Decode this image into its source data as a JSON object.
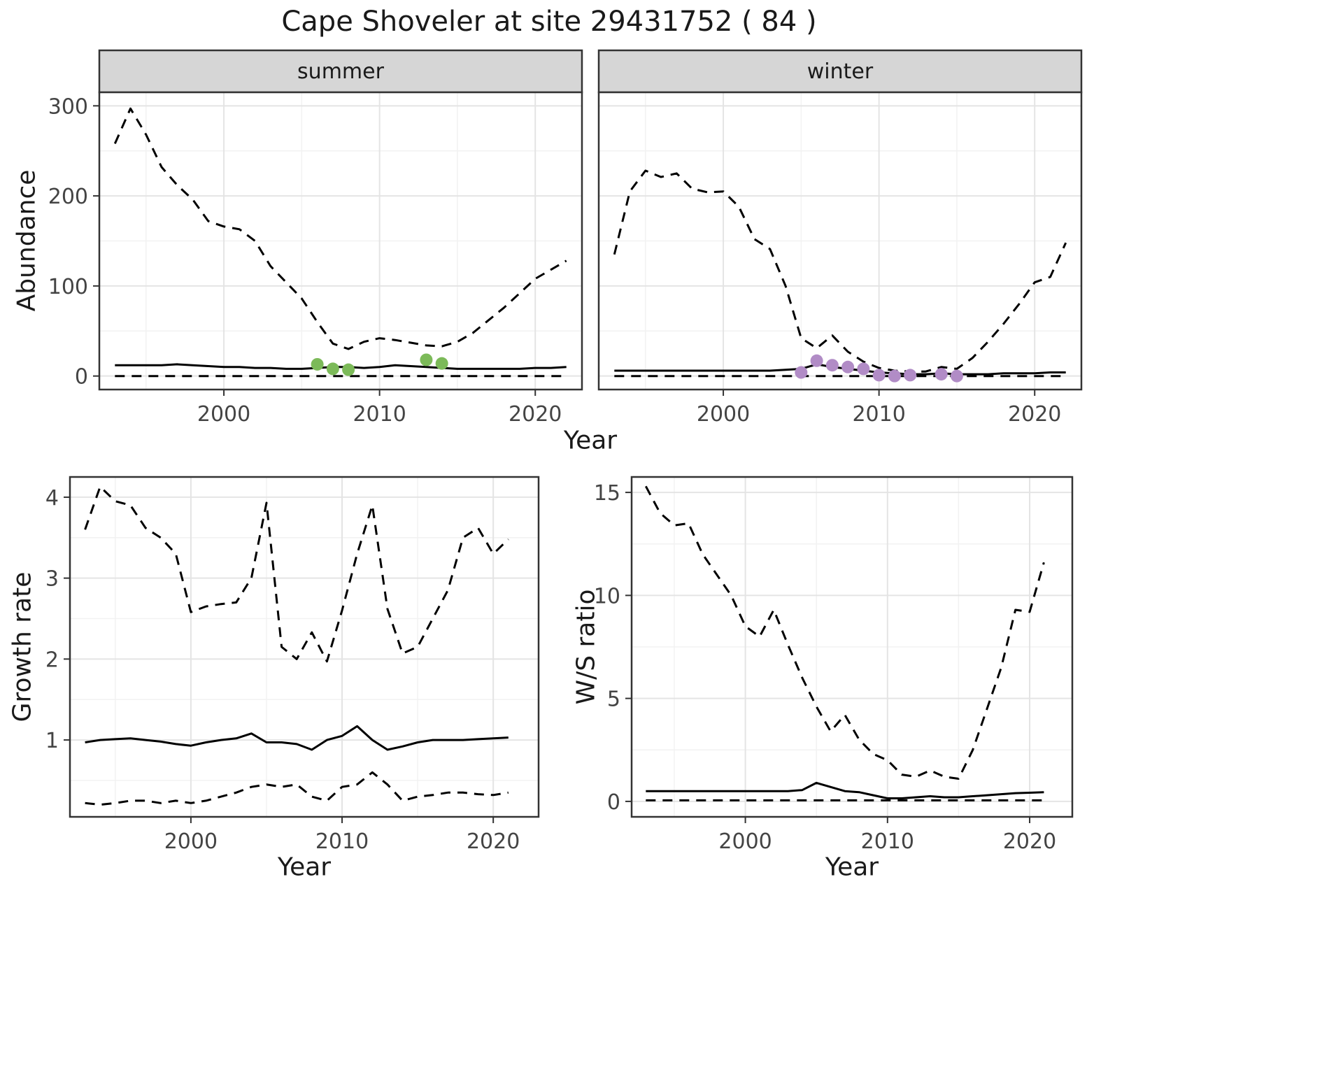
{
  "title": "Cape Shoveler at site 29431752 ( 84 )",
  "colors": {
    "line": "#000000",
    "strip_bg": "#d6d6d6",
    "panel_border": "#333333",
    "grid_major": "#e4e4e4",
    "grid_minor": "#f2f2f2",
    "summer_points": "#7cba59",
    "winter_points": "#b18cc6"
  },
  "chart_data": [
    {
      "id": "abundance-by-season",
      "type": "line",
      "title": "Cape Shoveler at site 29431752 ( 84 )",
      "xlabel": "Year",
      "ylabel": "Abundance",
      "xlim": [
        1992,
        2023
      ],
      "ylim": [
        -15,
        315
      ],
      "xticks": [
        2000,
        2010,
        2020
      ],
      "yticks": [
        0,
        100,
        200,
        300
      ],
      "grid": true,
      "legend": "none",
      "facets": [
        {
          "label": "summer",
          "point_color": "#7cba59",
          "years": [
            1993,
            1994,
            1995,
            1996,
            1997,
            1998,
            1999,
            2000,
            2001,
            2002,
            2003,
            2004,
            2005,
            2006,
            2007,
            2008,
            2009,
            2010,
            2011,
            2012,
            2013,
            2014,
            2015,
            2016,
            2017,
            2018,
            2019,
            2020,
            2021,
            2022
          ],
          "series": [
            {
              "name": "upper_95ci",
              "style": "dashed",
              "values": [
                258,
                297,
                268,
                232,
                212,
                196,
                172,
                166,
                163,
                150,
                122,
                104,
                86,
                60,
                36,
                30,
                38,
                42,
                40,
                37,
                34,
                33,
                38,
                48,
                62,
                76,
                92,
                108,
                118,
                128
              ]
            },
            {
              "name": "median",
              "style": "solid",
              "values": [
                12,
                12,
                12,
                12,
                13,
                12,
                11,
                10,
                10,
                9,
                9,
                8,
                8,
                9,
                10,
                10,
                9,
                10,
                12,
                11,
                10,
                9,
                8,
                8,
                8,
                8,
                8,
                9,
                9,
                10
              ]
            },
            {
              "name": "lower_95ci",
              "style": "dashed",
              "values": [
                0,
                0,
                0,
                0,
                0,
                0,
                0,
                0,
                0,
                0,
                0,
                0,
                0,
                0,
                0,
                0,
                0,
                0,
                0,
                0,
                0,
                0,
                0,
                0,
                0,
                0,
                0,
                0,
                0,
                0
              ]
            }
          ],
          "observed_points": {
            "x": [
              2006,
              2007,
              2008,
              2013,
              2014
            ],
            "y": [
              13,
              8,
              7,
              18,
              14
            ]
          }
        },
        {
          "label": "winter",
          "point_color": "#b18cc6",
          "years": [
            1993,
            1994,
            1995,
            1996,
            1997,
            1998,
            1999,
            2000,
            2001,
            2002,
            2003,
            2004,
            2005,
            2006,
            2007,
            2008,
            2009,
            2010,
            2011,
            2012,
            2013,
            2014,
            2015,
            2016,
            2017,
            2018,
            2019,
            2020,
            2021,
            2022
          ],
          "series": [
            {
              "name": "upper_95ci",
              "style": "dashed",
              "values": [
                135,
                205,
                228,
                221,
                225,
                208,
                204,
                205,
                188,
                152,
                141,
                100,
                42,
                31,
                45,
                27,
                16,
                9,
                6,
                5,
                5,
                10,
                8,
                20,
                38,
                58,
                80,
                104,
                110,
                148
              ]
            },
            {
              "name": "median",
              "style": "solid",
              "values": [
                6,
                6,
                6,
                6,
                6,
                6,
                6,
                6,
                6,
                6,
                6,
                7,
                8,
                13,
                10,
                8,
                6,
                4,
                3,
                2,
                2,
                3,
                2,
                2,
                2,
                3,
                3,
                3,
                4,
                4
              ]
            },
            {
              "name": "lower_95ci",
              "style": "dashed",
              "values": [
                0,
                0,
                0,
                0,
                0,
                0,
                0,
                0,
                0,
                0,
                0,
                0,
                0,
                0,
                0,
                0,
                0,
                0,
                0,
                0,
                0,
                0,
                0,
                0,
                0,
                0,
                0,
                0,
                0,
                0
              ]
            }
          ],
          "observed_points": {
            "x": [
              2005,
              2006,
              2007,
              2008,
              2009,
              2010,
              2011,
              2012,
              2014,
              2015
            ],
            "y": [
              4,
              17,
              12,
              10,
              8,
              1,
              0,
              1,
              2,
              0
            ]
          }
        }
      ]
    },
    {
      "id": "growth-rate",
      "type": "line",
      "title": "",
      "xlabel": "Year",
      "ylabel": "Growth rate",
      "xlim": [
        1992,
        2023
      ],
      "ylim": [
        0.05,
        4.25
      ],
      "xticks": [
        2000,
        2010,
        2020
      ],
      "yticks": [
        1,
        2,
        3,
        4
      ],
      "grid": true,
      "years": [
        1993,
        1994,
        1995,
        1996,
        1997,
        1998,
        1999,
        2000,
        2001,
        2002,
        2003,
        2004,
        2005,
        2006,
        2007,
        2008,
        2009,
        2010,
        2011,
        2012,
        2013,
        2014,
        2015,
        2016,
        2017,
        2018,
        2019,
        2020,
        2021
      ],
      "series": [
        {
          "name": "upper_95ci",
          "style": "dashed",
          "values": [
            3.6,
            4.13,
            3.95,
            3.9,
            3.62,
            3.5,
            3.3,
            2.58,
            2.65,
            2.68,
            2.7,
            3.0,
            3.93,
            2.15,
            2.0,
            2.33,
            1.97,
            2.6,
            3.3,
            3.9,
            2.62,
            2.07,
            2.15,
            2.5,
            2.85,
            3.5,
            3.62,
            3.3,
            3.48
          ]
        },
        {
          "name": "median",
          "style": "solid",
          "values": [
            0.97,
            1.0,
            1.01,
            1.02,
            1.0,
            0.98,
            0.95,
            0.93,
            0.97,
            1.0,
            1.02,
            1.08,
            0.97,
            0.97,
            0.95,
            0.88,
            1.0,
            1.05,
            1.17,
            1.0,
            0.88,
            0.92,
            0.97,
            1.0,
            1.0,
            1.0,
            1.01,
            1.02,
            1.03
          ]
        },
        {
          "name": "lower_95ci",
          "style": "dashed",
          "values": [
            0.22,
            0.2,
            0.22,
            0.25,
            0.25,
            0.22,
            0.25,
            0.22,
            0.25,
            0.3,
            0.35,
            0.42,
            0.45,
            0.42,
            0.45,
            0.3,
            0.25,
            0.42,
            0.45,
            0.6,
            0.45,
            0.25,
            0.3,
            0.32,
            0.35,
            0.35,
            0.33,
            0.32,
            0.35
          ]
        }
      ]
    },
    {
      "id": "winter-summer-ratio",
      "type": "line",
      "title": "",
      "xlabel": "Year",
      "ylabel": "W/S ratio",
      "xlim": [
        1992,
        2023
      ],
      "ylim": [
        -0.75,
        15.75
      ],
      "xticks": [
        2000,
        2010,
        2020
      ],
      "yticks": [
        0,
        5,
        10,
        15
      ],
      "grid": true,
      "years": [
        1993,
        1994,
        1995,
        1996,
        1997,
        1998,
        1999,
        2000,
        2001,
        2002,
        2003,
        2004,
        2005,
        2006,
        2007,
        2008,
        2009,
        2010,
        2011,
        2012,
        2013,
        2014,
        2015,
        2016,
        2017,
        2018,
        2019,
        2020,
        2021
      ],
      "series": [
        {
          "name": "upper_95ci",
          "style": "dashed",
          "values": [
            15.3,
            14.0,
            13.4,
            13.5,
            12.0,
            11.0,
            10.0,
            8.5,
            8.0,
            9.3,
            7.6,
            6.0,
            4.6,
            3.4,
            4.2,
            3.0,
            2.3,
            2.0,
            1.3,
            1.2,
            1.5,
            1.2,
            1.1,
            2.5,
            4.5,
            6.5,
            9.3,
            9.2,
            11.6
          ]
        },
        {
          "name": "median",
          "style": "solid",
          "values": [
            0.5,
            0.5,
            0.5,
            0.5,
            0.5,
            0.5,
            0.5,
            0.5,
            0.5,
            0.5,
            0.5,
            0.55,
            0.9,
            0.7,
            0.5,
            0.45,
            0.3,
            0.15,
            0.15,
            0.2,
            0.25,
            0.2,
            0.2,
            0.25,
            0.3,
            0.35,
            0.4,
            0.42,
            0.45
          ]
        },
        {
          "name": "lower_95ci",
          "style": "dashed",
          "values": [
            0.05,
            0.05,
            0.05,
            0.05,
            0.05,
            0.05,
            0.05,
            0.05,
            0.05,
            0.05,
            0.05,
            0.05,
            0.05,
            0.05,
            0.05,
            0.05,
            0.05,
            0.05,
            0.05,
            0.05,
            0.05,
            0.05,
            0.05,
            0.05,
            0.05,
            0.05,
            0.05,
            0.05,
            0.05
          ]
        }
      ]
    }
  ]
}
